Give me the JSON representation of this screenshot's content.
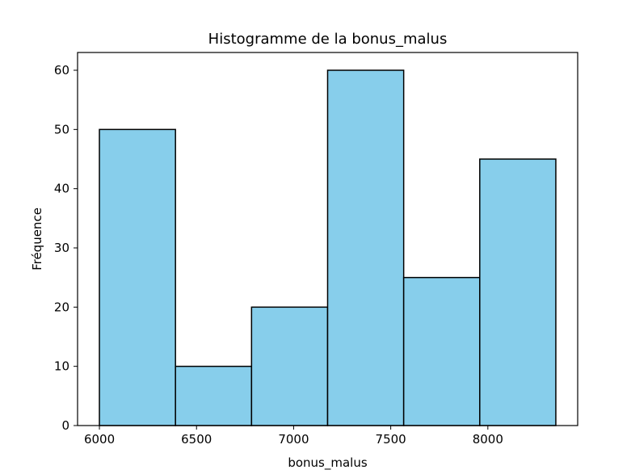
{
  "chart_data": {
    "type": "bar",
    "title": "Histogramme de la bonus_malus",
    "xlabel": "bonus_malus",
    "ylabel": "Fréquence",
    "bin_edges": [
      6000,
      6391.67,
      6783.33,
      7175,
      7566.67,
      7958.33,
      8350
    ],
    "values": [
      50,
      10,
      20,
      60,
      25,
      45
    ],
    "xlim": [
      5887.5,
      8462.5
    ],
    "ylim": [
      0,
      63
    ],
    "xticks": [
      6000,
      6500,
      7000,
      7500,
      8000
    ],
    "yticks": [
      0,
      10,
      20,
      30,
      40,
      50,
      60
    ],
    "bar_color": "#87ceeb",
    "edge_color": "#000000",
    "grid": false
  }
}
